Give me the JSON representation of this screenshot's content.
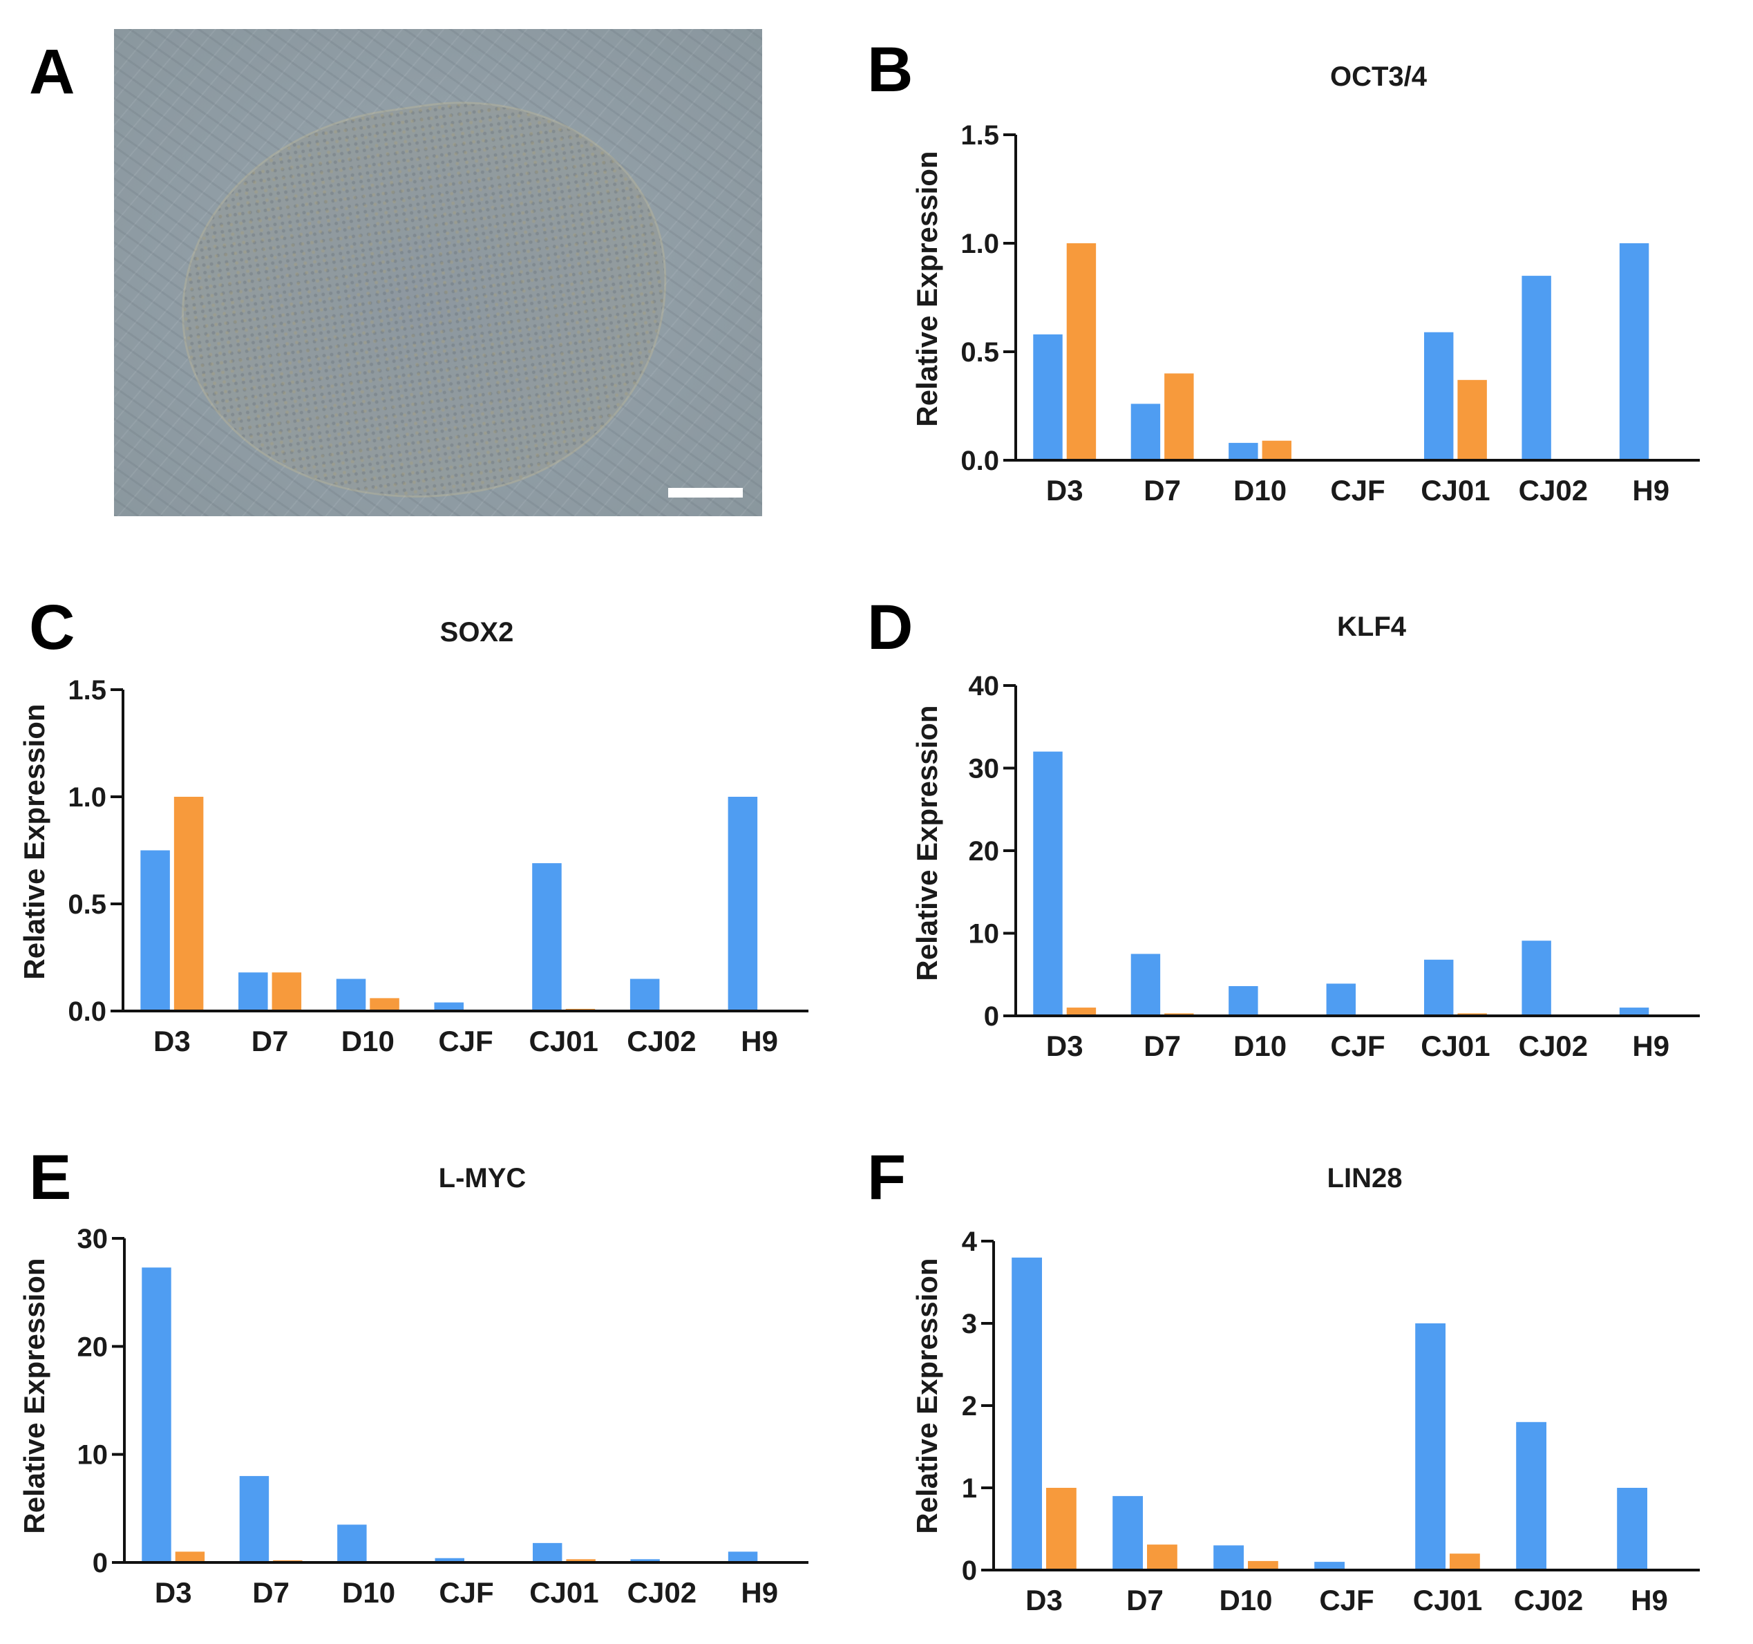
{
  "colors": {
    "series1": "#4f9df2",
    "series2": "#f79a3c",
    "axis": "#111111"
  },
  "panel_labels": {
    "a": "A",
    "b": "B",
    "c": "C",
    "d": "D",
    "e": "E",
    "f": "F"
  },
  "chart_data": [
    {
      "type": "bar",
      "panel": "B",
      "title": "OCT3/4",
      "xlabel": "",
      "ylabel": "Relative Expression",
      "categories": [
        "D3",
        "D7",
        "D10",
        "CJF",
        "CJ01",
        "CJ02",
        "H9"
      ],
      "ylim": [
        0,
        1.5
      ],
      "yticks": [
        "0.0",
        "0.5",
        "1.0",
        "1.5"
      ],
      "ytick_values": [
        0,
        0.5,
        1.0,
        1.5
      ],
      "series": [
        {
          "name": "series1",
          "values": [
            0.58,
            0.26,
            0.08,
            0,
            0.59,
            0.85,
            1.0
          ]
        },
        {
          "name": "series2",
          "values": [
            1.0,
            0.4,
            0.09,
            0,
            0.37,
            0,
            0
          ]
        }
      ]
    },
    {
      "type": "bar",
      "panel": "C",
      "title": "SOX2",
      "xlabel": "",
      "ylabel": "Relative Expression",
      "categories": [
        "D3",
        "D7",
        "D10",
        "CJF",
        "CJ01",
        "CJ02",
        "H9"
      ],
      "ylim": [
        0,
        1.5
      ],
      "yticks": [
        "0.0",
        "0.5",
        "1.0",
        "1.5"
      ],
      "ytick_values": [
        0,
        0.5,
        1.0,
        1.5
      ],
      "series": [
        {
          "name": "series1",
          "values": [
            0.75,
            0.18,
            0.15,
            0.04,
            0.69,
            0.15,
            1.0
          ]
        },
        {
          "name": "series2",
          "values": [
            1.0,
            0.18,
            0.06,
            0,
            0.01,
            0,
            0
          ]
        }
      ]
    },
    {
      "type": "bar",
      "panel": "D",
      "title": "KLF4",
      "xlabel": "",
      "ylabel": "Relative Expression",
      "categories": [
        "D3",
        "D7",
        "D10",
        "CJF",
        "CJ01",
        "CJ02",
        "H9"
      ],
      "ylim": [
        0,
        40
      ],
      "yticks": [
        "0",
        "10",
        "20",
        "30",
        "40"
      ],
      "ytick_values": [
        0,
        10,
        20,
        30,
        40
      ],
      "series": [
        {
          "name": "series1",
          "values": [
            32.0,
            7.5,
            3.6,
            3.9,
            6.8,
            9.1,
            1.0
          ]
        },
        {
          "name": "series2",
          "values": [
            1.0,
            0.3,
            0.15,
            0,
            0.3,
            0,
            0
          ]
        }
      ]
    },
    {
      "type": "bar",
      "panel": "E",
      "title": "L-MYC",
      "xlabel": "",
      "ylabel": "Relative Expression",
      "categories": [
        "D3",
        "D7",
        "D10",
        "CJF",
        "CJ01",
        "CJ02",
        "H9"
      ],
      "ylim": [
        0,
        30
      ],
      "yticks": [
        "0",
        "10",
        "20",
        "30"
      ],
      "ytick_values": [
        0,
        10,
        20,
        30
      ],
      "series": [
        {
          "name": "series1",
          "values": [
            27.3,
            8.0,
            3.5,
            0.4,
            1.8,
            0.3,
            1.0
          ]
        },
        {
          "name": "series2",
          "values": [
            1.0,
            0.2,
            0.1,
            0,
            0.3,
            0,
            0
          ]
        }
      ]
    },
    {
      "type": "bar",
      "panel": "F",
      "title": "LIN28",
      "xlabel": "",
      "ylabel": "Relative Expression",
      "categories": [
        "D3",
        "D7",
        "D10",
        "CJF",
        "CJ01",
        "CJ02",
        "H9"
      ],
      "ylim": [
        0,
        4
      ],
      "yticks": [
        "0",
        "1",
        "2",
        "3",
        "4"
      ],
      "ytick_values": [
        0,
        1,
        2,
        3,
        4
      ],
      "series": [
        {
          "name": "series1",
          "values": [
            3.8,
            0.9,
            0.3,
            0.1,
            3.0,
            1.8,
            1.0
          ]
        },
        {
          "name": "series2",
          "values": [
            1.0,
            0.31,
            0.11,
            0,
            0.2,
            0,
            0
          ]
        }
      ]
    }
  ]
}
